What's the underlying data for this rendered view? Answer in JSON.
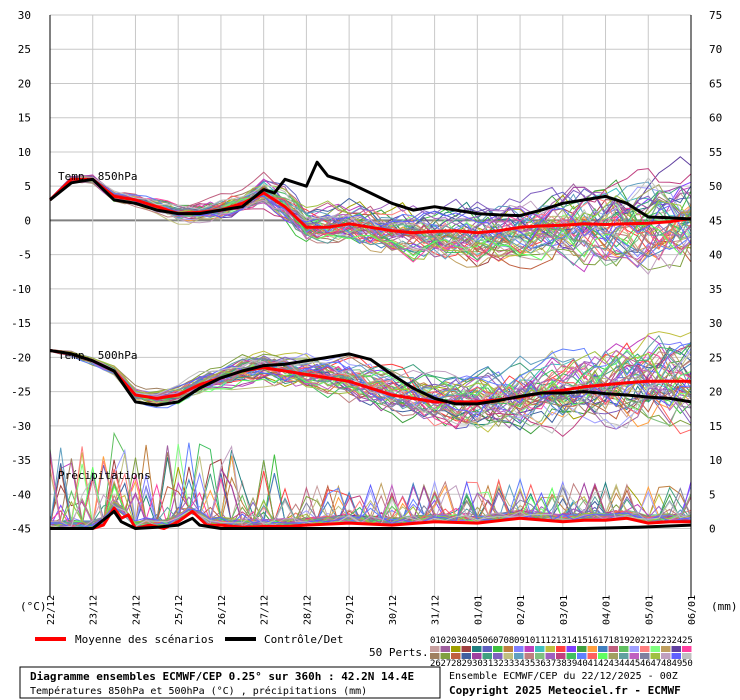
{
  "chart_data": {
    "type": "line",
    "left_axis": {
      "min": -55,
      "max": 30,
      "ticks": [
        30,
        25,
        20,
        15,
        10,
        5,
        0,
        -5,
        -10,
        -15,
        -20,
        -25,
        -30,
        -35,
        -40,
        -45
      ],
      "unit": "(°C)"
    },
    "right_axis": {
      "min": -10,
      "max": 75,
      "ticks": [
        75,
        70,
        65,
        60,
        55,
        50,
        45,
        40,
        35,
        30,
        25,
        20,
        15,
        10,
        5,
        0
      ],
      "unit": "(mm)",
      "offset_from_left": 45
    },
    "x_dates": [
      "22/12",
      "23/12",
      "24/12",
      "25/12",
      "26/12",
      "27/12",
      "28/12",
      "29/12",
      "30/12",
      "31/12",
      "01/01",
      "02/01",
      "03/01",
      "04/01",
      "05/01",
      "06/01"
    ],
    "x_range_hours": [
      0,
      360
    ],
    "annotations": {
      "t850": "Temp. 850hPa",
      "t500": "Temp. 500hPa",
      "precip": "Précipitations"
    },
    "series": [
      {
        "key": "t850_mean",
        "axis": "left",
        "color": "#ff0000",
        "x": [
          0,
          12,
          24,
          36,
          48,
          60,
          72,
          84,
          96,
          108,
          120,
          132,
          144,
          156,
          168,
          180,
          192,
          204,
          216,
          228,
          240,
          252,
          264,
          276,
          288,
          300,
          312,
          324,
          336,
          348,
          360
        ],
        "y": [
          3,
          6,
          6,
          3.5,
          3,
          2,
          1,
          1.2,
          1.5,
          2.5,
          4,
          2,
          -1,
          -1,
          -0.5,
          -1,
          -1.5,
          -1.8,
          -1.6,
          -1.5,
          -1.8,
          -1.5,
          -1,
          -0.8,
          -0.7,
          -0.5,
          -0.6,
          -0.5,
          -0.4,
          -0.2,
          0.3
        ]
      },
      {
        "key": "t850_control",
        "axis": "left",
        "color": "#000000",
        "x": [
          0,
          12,
          24,
          36,
          48,
          60,
          72,
          84,
          96,
          108,
          120,
          126,
          132,
          144,
          150,
          156,
          168,
          180,
          192,
          204,
          216,
          228,
          240,
          252,
          264,
          276,
          288,
          300,
          312,
          324,
          336,
          348,
          360
        ],
        "y": [
          3,
          5.5,
          6,
          3,
          2.5,
          1.5,
          1,
          1,
          1.5,
          2,
          4.5,
          4,
          6,
          5,
          8.5,
          6.5,
          5.5,
          4,
          2.5,
          1.5,
          2,
          1.5,
          1,
          0.8,
          0.7,
          1.5,
          2.5,
          3,
          3.5,
          2.5,
          0.5,
          0.4,
          0.2
        ]
      },
      {
        "key": "t500_mean",
        "axis": "left",
        "color": "#ff0000",
        "x": [
          0,
          12,
          24,
          36,
          48,
          60,
          72,
          84,
          96,
          108,
          120,
          132,
          144,
          156,
          168,
          180,
          192,
          204,
          216,
          228,
          240,
          252,
          264,
          276,
          288,
          300,
          312,
          324,
          336,
          348,
          360
        ],
        "y": [
          -19,
          -19.5,
          -20.5,
          -22,
          -25.5,
          -26,
          -25.5,
          -24,
          -23,
          -22,
          -21.5,
          -22,
          -22.5,
          -23,
          -23.5,
          -24.5,
          -25.5,
          -26,
          -26.5,
          -26.5,
          -26.5,
          -26.2,
          -25.8,
          -25.2,
          -24.8,
          -24.3,
          -24,
          -23.7,
          -23.5,
          -23.5,
          -23.5
        ]
      },
      {
        "key": "t500_control",
        "axis": "left",
        "color": "#000000",
        "x": [
          0,
          12,
          24,
          36,
          48,
          60,
          72,
          84,
          96,
          108,
          120,
          132,
          144,
          156,
          168,
          180,
          192,
          204,
          216,
          228,
          240,
          252,
          264,
          276,
          288,
          300,
          312,
          324,
          336,
          348,
          360
        ],
        "y": [
          -19,
          -19.5,
          -20.5,
          -22,
          -26.5,
          -27,
          -26.5,
          -24.5,
          -23,
          -22,
          -21.2,
          -21,
          -20.5,
          -20,
          -19.5,
          -20.3,
          -22.5,
          -24.5,
          -26,
          -26.8,
          -26.8,
          -26.3,
          -25.7,
          -25.2,
          -25.2,
          -25,
          -25.3,
          -25.5,
          -25.8,
          -26,
          -26.5
        ]
      },
      {
        "key": "precip_mean",
        "axis": "right",
        "color": "#ff0000",
        "x": [
          0,
          12,
          24,
          30,
          36,
          40,
          44,
          48,
          56,
          64,
          72,
          80,
          84,
          88,
          96,
          108,
          120,
          132,
          144,
          168,
          192,
          216,
          240,
          264,
          288,
          300,
          312,
          324,
          336,
          348,
          360
        ],
        "y": [
          0,
          0,
          0,
          0.5,
          3,
          1.5,
          2,
          0,
          0.5,
          0,
          1,
          2.5,
          1.5,
          0.5,
          0.5,
          0.2,
          0.3,
          0.3,
          0.5,
          0.8,
          0.5,
          1,
          0.8,
          1.5,
          1,
          1.2,
          1.2,
          1.5,
          0.8,
          1,
          1
        ]
      },
      {
        "key": "precip_control",
        "axis": "right",
        "color": "#000000",
        "x": [
          0,
          24,
          36,
          40,
          44,
          48,
          60,
          72,
          80,
          84,
          96,
          120,
          168,
          240,
          300,
          330,
          360
        ],
        "y": [
          0,
          0,
          2.5,
          1,
          0.5,
          0,
          0.2,
          0.5,
          1.5,
          0.5,
          0,
          0,
          0,
          0,
          0,
          0.2,
          0.5
        ]
      }
    ],
    "legend": {
      "mean_label": "Moyenne des scénarios",
      "control_label": "Contrôle/Det",
      "perts_label": "50 Perts."
    },
    "perturbations": {
      "top": [
        "01",
        "02",
        "03",
        "04",
        "05",
        "06",
        "07",
        "08",
        "09",
        "10",
        "11",
        "12",
        "13",
        "14",
        "15",
        "16",
        "17",
        "18",
        "19",
        "20",
        "21",
        "22",
        "23",
        "24",
        "25"
      ],
      "bottom": [
        "26",
        "27",
        "28",
        "29",
        "30",
        "31",
        "32",
        "33",
        "34",
        "35",
        "36",
        "37",
        "38",
        "39",
        "40",
        "41",
        "42",
        "43",
        "44",
        "45",
        "46",
        "47",
        "48",
        "49",
        "50"
      ],
      "colors_top": [
        "#c8a0a0",
        "#a060a0",
        "#a0a000",
        "#a04040",
        "#208080",
        "#6060c0",
        "#40c040",
        "#c08040",
        "#8080ff",
        "#c040c0",
        "#40c0c0",
        "#c0c040",
        "#ff4040",
        "#8040ff",
        "#40a040",
        "#ffa040",
        "#4080c0",
        "#c06080",
        "#60c060",
        "#a0a0ff",
        "#ff8080",
        "#80ff80",
        "#c0a060",
        "#6040a0",
        "#ff40a0"
      ],
      "colors_bottom": [
        "#a08060",
        "#80a040",
        "#c06040",
        "#4060a0",
        "#a040a0",
        "#40a080",
        "#8060c0",
        "#c0c080",
        "#60a0c0",
        "#c08080",
        "#80c080",
        "#a060c0",
        "#c04080",
        "#40c060",
        "#6080ff",
        "#ff6060",
        "#60ff60",
        "#a0a060",
        "#60a0a0",
        "#c060c0",
        "#8080a0",
        "#a0c040",
        "#c0a0c0",
        "#6060ff",
        "#c0c0c0"
      ]
    },
    "info": {
      "line1": "Diagramme ensembles ECMWF/CEP 0.25° sur 360h : 42.2N 14.4E",
      "line2": "Températures 850hPa et 500hPa (°C) , précipitations (mm)",
      "ensemble": "Ensemble ECMWF/CEP du 22/12/2025 - 00Z",
      "copyright": "Copyright 2025 Meteociel.fr - ECMWF"
    }
  }
}
